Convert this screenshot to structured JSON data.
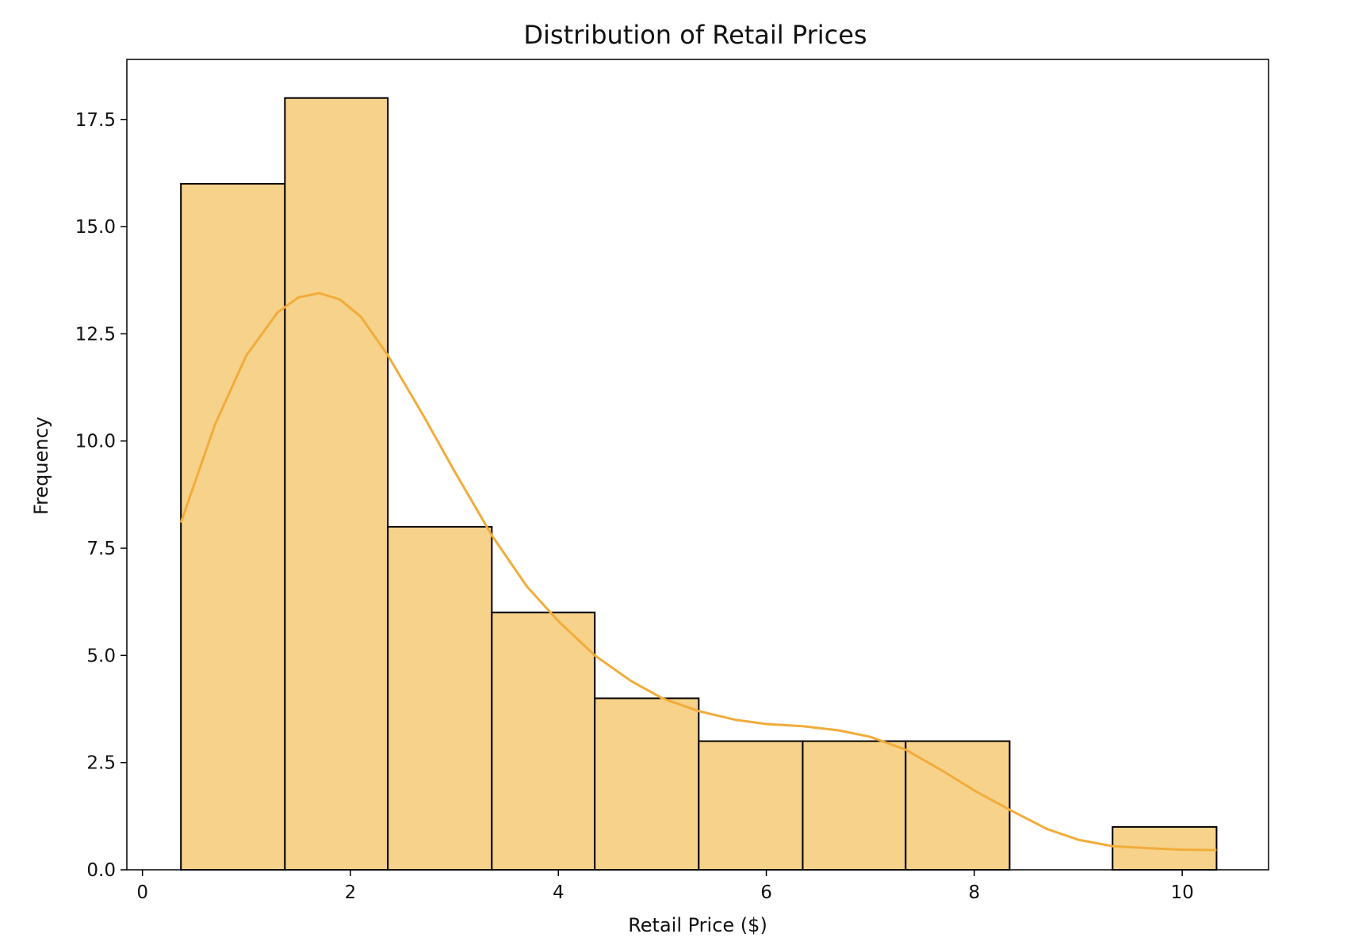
{
  "chart_data": {
    "type": "bar",
    "title": "Distribution of Retail Prices",
    "xlabel": "Retail Price ($)",
    "ylabel": "Frequency",
    "xlim": [
      -0.15,
      10.83
    ],
    "ylim": [
      0,
      18.9
    ],
    "xticks": [
      0,
      2,
      4,
      6,
      8,
      10
    ],
    "xtick_labels": [
      "0",
      "2",
      "4",
      "6",
      "8",
      "10"
    ],
    "yticks": [
      0,
      2.5,
      5,
      7.5,
      10,
      12.5,
      15,
      17.5
    ],
    "ytick_labels": [
      "0.0",
      "2.5",
      "5.0",
      "7.5",
      "10.0",
      "12.5",
      "15.0",
      "17.5"
    ],
    "bins": [
      {
        "x0": 0.37,
        "x1": 1.37,
        "count": 16
      },
      {
        "x0": 1.37,
        "x1": 2.36,
        "count": 18
      },
      {
        "x0": 2.36,
        "x1": 3.36,
        "count": 8
      },
      {
        "x0": 3.36,
        "x1": 4.35,
        "count": 6
      },
      {
        "x0": 4.35,
        "x1": 5.35,
        "count": 4
      },
      {
        "x0": 5.35,
        "x1": 6.35,
        "count": 3
      },
      {
        "x0": 6.35,
        "x1": 7.34,
        "count": 3
      },
      {
        "x0": 7.34,
        "x1": 8.34,
        "count": 3
      },
      {
        "x0": 8.34,
        "x1": 9.33,
        "count": 0
      },
      {
        "x0": 9.33,
        "x1": 10.33,
        "count": 1
      }
    ],
    "kde": {
      "x": [
        0.37,
        0.7,
        1.0,
        1.3,
        1.5,
        1.7,
        1.9,
        2.1,
        2.36,
        2.7,
        3.0,
        3.36,
        3.7,
        4.0,
        4.35,
        4.7,
        5.0,
        5.35,
        5.7,
        6.0,
        6.35,
        6.7,
        7.0,
        7.34,
        7.7,
        8.0,
        8.34,
        8.7,
        9.0,
        9.33,
        9.7,
        10.0,
        10.33
      ],
      "y": [
        8.1,
        10.4,
        12.0,
        13.0,
        13.35,
        13.45,
        13.3,
        12.9,
        12.0,
        10.6,
        9.3,
        7.8,
        6.6,
        5.8,
        5.0,
        4.4,
        4.0,
        3.7,
        3.5,
        3.4,
        3.35,
        3.25,
        3.1,
        2.8,
        2.3,
        1.85,
        1.4,
        0.95,
        0.7,
        0.55,
        0.5,
        0.47,
        0.46
      ]
    },
    "colors": {
      "bar_fill": "#f7d28b",
      "bar_edge": "#000000",
      "kde_line": "#f2ac3a"
    },
    "grid": false,
    "legend": "none"
  }
}
